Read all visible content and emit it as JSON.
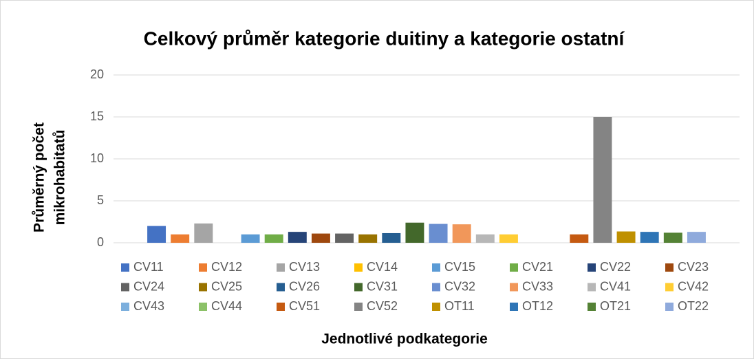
{
  "chart_data": {
    "type": "bar",
    "title": "Celkový průměr kategorie duitiny a kategorie ostatní",
    "y_label": [
      "Průměrný počet",
      "mikrohabitatů"
    ],
    "x_label": "Jednotlivé podkategorie",
    "categories": [
      null
    ],
    "ylim": [
      0,
      20
    ],
    "yticks": [
      0,
      5,
      10,
      15,
      20
    ],
    "grid": true,
    "legend": "bottom",
    "series": [
      {
        "name": "CV11",
        "color": "#4472C4",
        "values": [
          2.0
        ]
      },
      {
        "name": "CV12",
        "color": "#ED7D31",
        "values": [
          1.0
        ]
      },
      {
        "name": "CV13",
        "color": "#A5A5A5",
        "values": [
          2.3
        ]
      },
      {
        "name": "CV14",
        "color": "#FFC000",
        "values": [
          0
        ]
      },
      {
        "name": "CV15",
        "color": "#5B9BD5",
        "values": [
          1.0
        ]
      },
      {
        "name": "CV21",
        "color": "#70AD47",
        "values": [
          1.0
        ]
      },
      {
        "name": "CV22",
        "color": "#264478",
        "values": [
          1.3
        ]
      },
      {
        "name": "CV23",
        "color": "#9E480E",
        "values": [
          1.1
        ]
      },
      {
        "name": "CV24",
        "color": "#636363",
        "values": [
          1.1
        ]
      },
      {
        "name": "CV25",
        "color": "#997300",
        "values": [
          1.0
        ]
      },
      {
        "name": "CV26",
        "color": "#255E91",
        "values": [
          1.15
        ]
      },
      {
        "name": "CV31",
        "color": "#43682B",
        "values": [
          2.4
        ]
      },
      {
        "name": "CV32",
        "color": "#698ED0",
        "values": [
          2.25
        ]
      },
      {
        "name": "CV33",
        "color": "#F1975A",
        "values": [
          2.2
        ]
      },
      {
        "name": "CV41",
        "color": "#B7B7B7",
        "values": [
          1.0
        ]
      },
      {
        "name": "CV42",
        "color": "#FFCD33",
        "values": [
          1.0
        ]
      },
      {
        "name": "CV43",
        "color": "#7CAFDD",
        "values": [
          0
        ]
      },
      {
        "name": "CV44",
        "color": "#8CC168",
        "values": [
          0
        ]
      },
      {
        "name": "CV51",
        "color": "#C55A11",
        "values": [
          1.0
        ]
      },
      {
        "name": "CV52",
        "color": "#848484",
        "values": [
          15
        ]
      },
      {
        "name": "OT11",
        "color": "#BF9000",
        "values": [
          1.35
        ]
      },
      {
        "name": "OT12",
        "color": "#2E75B6",
        "values": [
          1.3
        ]
      },
      {
        "name": "OT21",
        "color": "#548235",
        "values": [
          1.2
        ]
      },
      {
        "name": "OT22",
        "color": "#8FAADC",
        "values": [
          1.3
        ]
      }
    ]
  }
}
